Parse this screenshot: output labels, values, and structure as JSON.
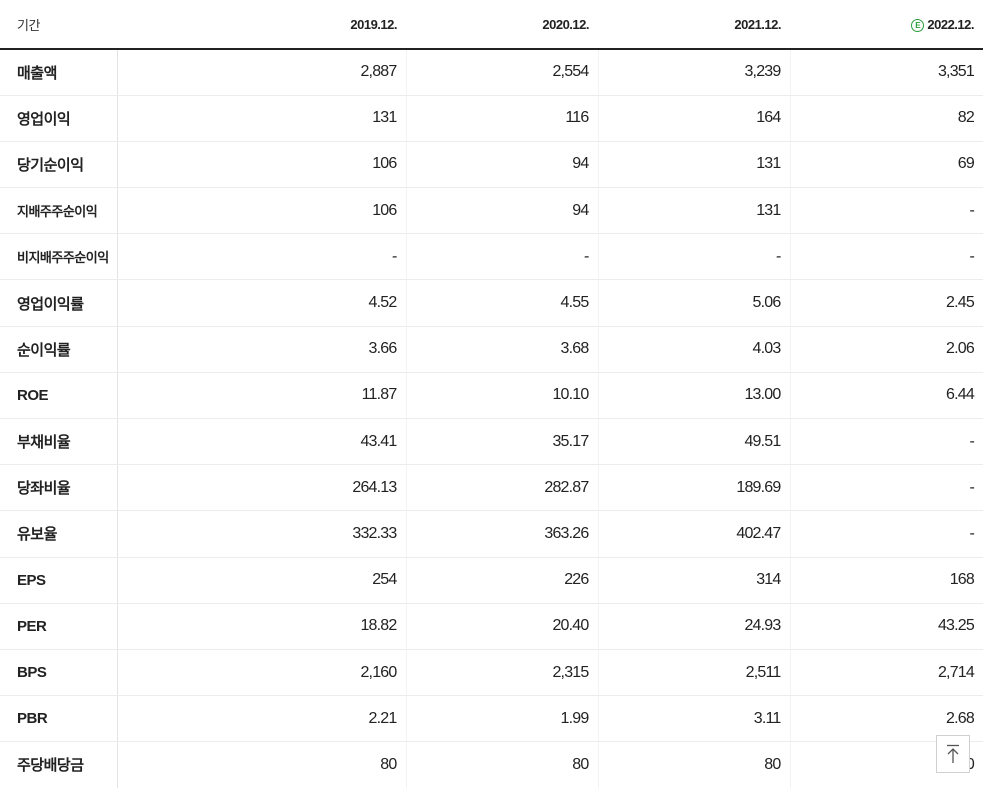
{
  "table": {
    "header_label": "기간",
    "columns": [
      {
        "label": "2019.12.",
        "estimate": false
      },
      {
        "label": "2020.12.",
        "estimate": false
      },
      {
        "label": "2021.12.",
        "estimate": false
      },
      {
        "label": "2022.12.",
        "estimate": true,
        "badge": "E"
      }
    ],
    "rows": [
      {
        "key": "sales",
        "label": "매출액",
        "values": [
          "2,887",
          "2,554",
          "3,239",
          "3,351"
        ]
      },
      {
        "key": "operating-profit",
        "label": "영업이익",
        "values": [
          "131",
          "116",
          "164",
          "82"
        ]
      },
      {
        "key": "net-income",
        "label": "당기순이익",
        "values": [
          "106",
          "94",
          "131",
          "69"
        ]
      },
      {
        "key": "controlling-net-income",
        "label": "지배주주순이익",
        "values": [
          "106",
          "94",
          "131",
          "-"
        ]
      },
      {
        "key": "non-controlling-net-income",
        "label": "비지배주주순이익",
        "values": [
          "-",
          "-",
          "-",
          "-"
        ]
      },
      {
        "key": "operating-margin",
        "label": "영업이익률",
        "values": [
          "4.52",
          "4.55",
          "5.06",
          "2.45"
        ]
      },
      {
        "key": "net-margin",
        "label": "순이익률",
        "values": [
          "3.66",
          "3.68",
          "4.03",
          "2.06"
        ]
      },
      {
        "key": "roe",
        "label": "ROE",
        "values": [
          "11.87",
          "10.10",
          "13.00",
          "6.44"
        ]
      },
      {
        "key": "debt-ratio",
        "label": "부채비율",
        "values": [
          "43.41",
          "35.17",
          "49.51",
          "-"
        ]
      },
      {
        "key": "quick-ratio",
        "label": "당좌비율",
        "values": [
          "264.13",
          "282.87",
          "189.69",
          "-"
        ]
      },
      {
        "key": "reserve-ratio",
        "label": "유보율",
        "values": [
          "332.33",
          "363.26",
          "402.47",
          "-"
        ]
      },
      {
        "key": "eps",
        "label": "EPS",
        "values": [
          "254",
          "226",
          "314",
          "168"
        ]
      },
      {
        "key": "per",
        "label": "PER",
        "values": [
          "18.82",
          "20.40",
          "24.93",
          "43.25"
        ]
      },
      {
        "key": "bps",
        "label": "BPS",
        "values": [
          "2,160",
          "2,315",
          "2,511",
          "2,714"
        ]
      },
      {
        "key": "pbr",
        "label": "PBR",
        "values": [
          "2.21",
          "1.99",
          "3.11",
          "2.68"
        ]
      },
      {
        "key": "dps",
        "label": "주당배당금",
        "values": [
          "80",
          "80",
          "80",
          "0"
        ]
      }
    ]
  },
  "scroll_top_icon": "arrow-up-to-top-icon",
  "colors": {
    "estimate_badge": "#2a9d3c",
    "header_rule": "#222222",
    "row_rule": "#ececec",
    "group_rule": "#c8c8c8"
  }
}
